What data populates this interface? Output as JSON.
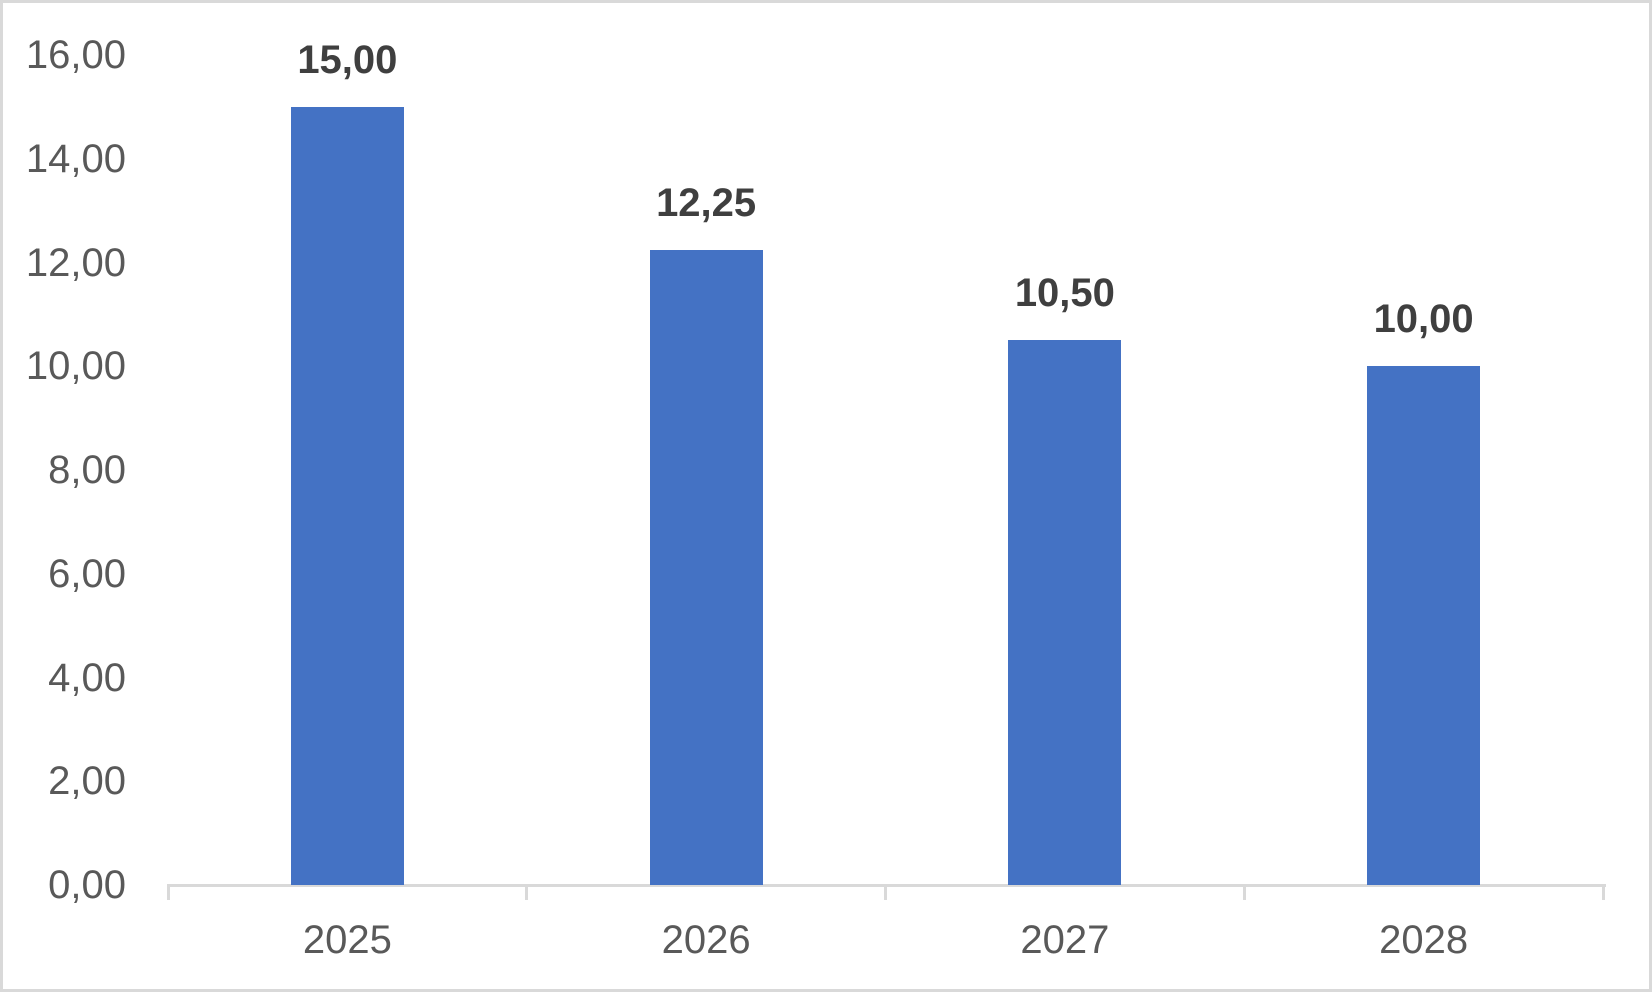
{
  "chart_data": {
    "type": "bar",
    "title": "",
    "xlabel": "",
    "ylabel": "",
    "categories": [
      "2025",
      "2026",
      "2027",
      "2028"
    ],
    "series": [
      {
        "name": "values",
        "values": [
          15.0,
          12.25,
          10.5,
          10.0
        ],
        "value_labels": [
          "15,00",
          "12,25",
          "10,50",
          "10,00"
        ]
      }
    ],
    "y_axis": {
      "min": 0,
      "max": 16,
      "step": 2,
      "tick_values": [
        0,
        2,
        4,
        6,
        8,
        10,
        12,
        14,
        16
      ],
      "tick_labels": [
        "0,00",
        "2,00",
        "4,00",
        "6,00",
        "8,00",
        "10,00",
        "12,00",
        "14,00",
        "16,00"
      ],
      "decimal_separator": ","
    },
    "grid": false,
    "legend_position": "none",
    "data_labels_shown": true,
    "colors": {
      "bar_fill": "#4472C4",
      "data_label_text": "#3F3F3F",
      "axis_tick_label_text": "#595959",
      "axis_line": "#D9D9D9",
      "frame_border": "#D9D9D9",
      "background": "#FFFFFF"
    }
  }
}
